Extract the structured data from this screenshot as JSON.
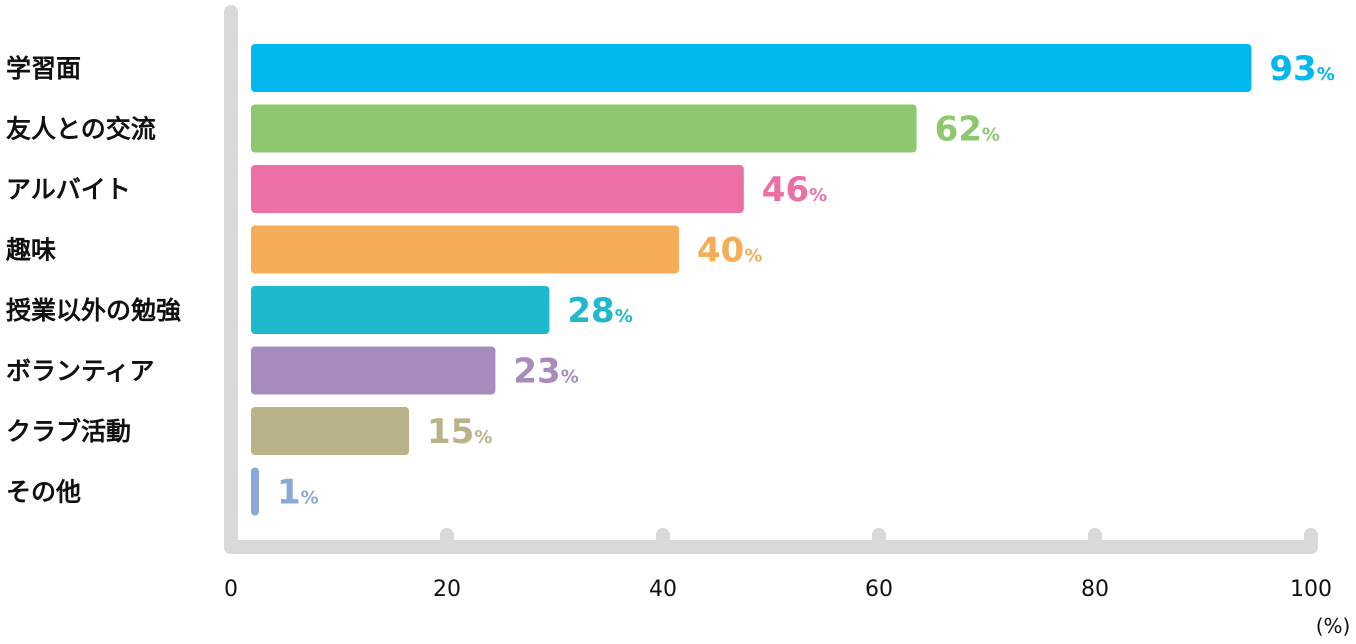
{
  "chart_data": {
    "type": "bar",
    "orientation": "horizontal",
    "categories": [
      "学習面",
      "友人との交流",
      "アルバイト",
      "趣味",
      "授業以外の勉強",
      "ボランティア",
      "クラブ活動",
      "その他"
    ],
    "values": [
      93,
      62,
      46,
      40,
      28,
      23,
      15,
      1
    ],
    "value_suffix": "%",
    "colors": [
      "#00b8ee",
      "#8dc86e",
      "#ec70a6",
      "#f5ae58",
      "#1eb9cc",
      "#a88bbd",
      "#bab389",
      "#8aa8d8"
    ],
    "xlim": [
      0,
      100
    ],
    "xticks": [
      "0",
      "20",
      "40",
      "60",
      "80",
      "100"
    ],
    "x_unit": "(%)",
    "grid": false,
    "legend": "none"
  }
}
